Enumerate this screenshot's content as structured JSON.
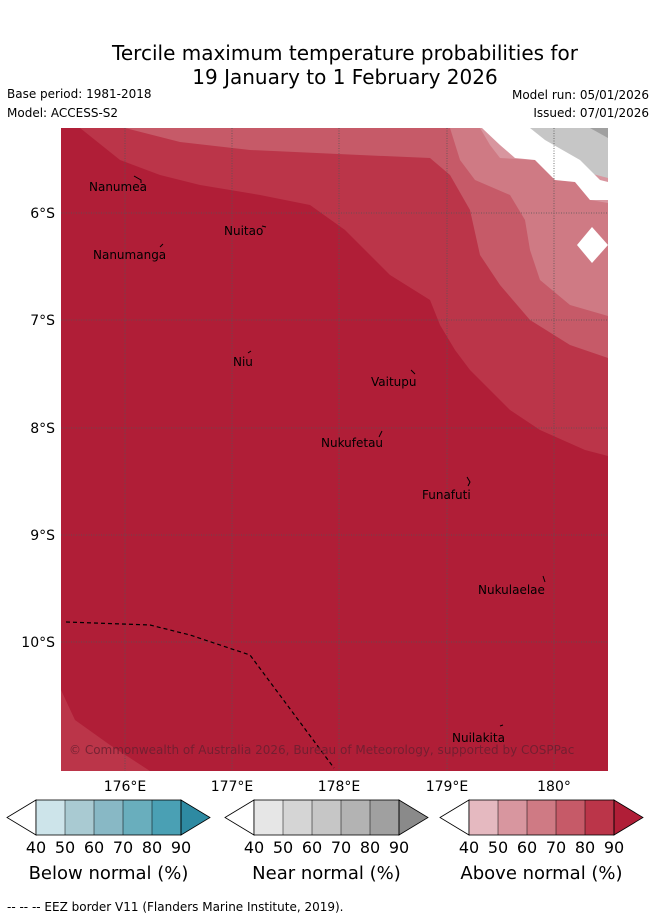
{
  "header": {
    "title_line1": "Tercile maximum temperature probabilities for",
    "title_line2": "19 January to 1 February 2026",
    "base_period": "Base period: 1981-2018",
    "model": "Model: ACCESS-S2",
    "model_run": "Model run: 05/01/2026",
    "issued": "Issued: 07/01/2026"
  },
  "map": {
    "lat_labels": [
      "6°S",
      "7°S",
      "8°S",
      "9°S",
      "10°S"
    ],
    "lon_labels": [
      "176°E",
      "177°E",
      "178°E",
      "179°E",
      "180°"
    ],
    "places": [
      "Nanumea",
      "Nuitao",
      "Nanumanga",
      "Niu",
      "Vaitupu",
      "Nukufetau",
      "Funafuti",
      "Nukulaelae",
      "Nuilakita"
    ],
    "copyright": "© Commonwealth of Australia 2026, Bureau of Meteorology, supported by COSPPac"
  },
  "colorbars": [
    {
      "title": "Below normal (%)",
      "ticks": [
        "40",
        "50",
        "60",
        "70",
        "80",
        "90"
      ],
      "colors": [
        "#ffffff",
        "#cde4ea",
        "#a9cad2",
        "#88b8c5",
        "#69aebd",
        "#4aa0b4",
        "#2e8aa2"
      ]
    },
    {
      "title": "Near normal (%)",
      "ticks": [
        "40",
        "50",
        "60",
        "70",
        "80",
        "90"
      ],
      "colors": [
        "#ffffff",
        "#e6e6e6",
        "#d5d5d5",
        "#c6c6c6",
        "#b3b3b3",
        "#a0a0a0",
        "#8a8a8a"
      ]
    },
    {
      "title": "Above normal (%)",
      "ticks": [
        "40",
        "50",
        "60",
        "70",
        "80",
        "90"
      ],
      "colors": [
        "#ffffff",
        "#e5b9c0",
        "#d8969f",
        "#cf7a84",
        "#c65a68",
        "#bb3549",
        "#b01e37"
      ]
    }
  ],
  "footer": "--  --  -- EEZ border V11 (Flanders Marine Institute, 2019)."
}
